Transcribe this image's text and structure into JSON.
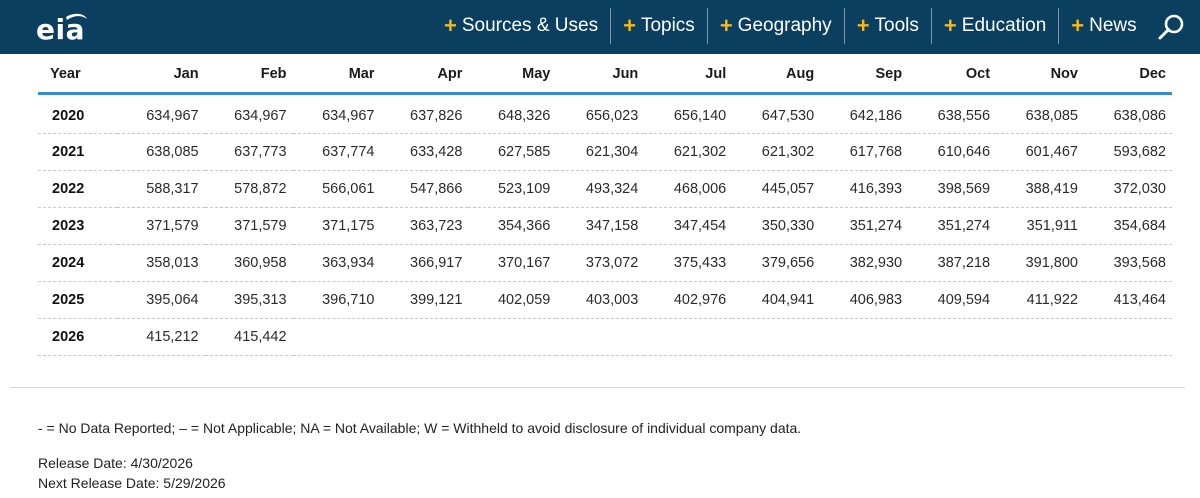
{
  "header": {
    "logo_text": "eia",
    "nav": [
      {
        "label": "Sources & Uses"
      },
      {
        "label": "Topics"
      },
      {
        "label": "Geography"
      },
      {
        "label": "Tools"
      },
      {
        "label": "Education"
      },
      {
        "label": "News"
      }
    ],
    "icons": {
      "search": "search-icon",
      "expand": "plus-icon"
    },
    "colors": {
      "bar_bg": "#0b3f5f",
      "plus": "#f2b81c",
      "table_rule": "#3a8bd1"
    }
  },
  "table": {
    "columns": [
      "Year",
      "Jan",
      "Feb",
      "Mar",
      "Apr",
      "May",
      "Jun",
      "Jul",
      "Aug",
      "Sep",
      "Oct",
      "Nov",
      "Dec"
    ],
    "rows": [
      [
        "2020",
        "634,967",
        "634,967",
        "634,967",
        "637,826",
        "648,326",
        "656,023",
        "656,140",
        "647,530",
        "642,186",
        "638,556",
        "638,085",
        "638,086"
      ],
      [
        "2021",
        "638,085",
        "637,773",
        "637,774",
        "633,428",
        "627,585",
        "621,304",
        "621,302",
        "621,302",
        "617,768",
        "610,646",
        "601,467",
        "593,682"
      ],
      [
        "2022",
        "588,317",
        "578,872",
        "566,061",
        "547,866",
        "523,109",
        "493,324",
        "468,006",
        "445,057",
        "416,393",
        "398,569",
        "388,419",
        "372,030"
      ],
      [
        "2023",
        "371,579",
        "371,579",
        "371,175",
        "363,723",
        "354,366",
        "347,158",
        "347,454",
        "350,330",
        "351,274",
        "351,274",
        "351,911",
        "354,684"
      ],
      [
        "2024",
        "358,013",
        "360,958",
        "363,934",
        "366,917",
        "370,167",
        "373,072",
        "375,433",
        "379,656",
        "382,930",
        "387,218",
        "391,800",
        "393,568"
      ],
      [
        "2025",
        "395,064",
        "395,313",
        "396,710",
        "399,121",
        "402,059",
        "403,003",
        "402,976",
        "404,941",
        "406,983",
        "409,594",
        "411,922",
        "413,464"
      ],
      [
        "2026",
        "415,212",
        "415,442",
        "",
        "",
        "",
        "",
        "",
        "",
        "",
        "",
        "",
        ""
      ]
    ]
  },
  "footer": {
    "legend": "- = No Data Reported;  – = Not Applicable;  NA = Not Available;  W = Withheld to avoid disclosure of individual company data.",
    "release_date": "Release Date: 4/30/2026",
    "next_release_date": "Next Release Date: 5/29/2026"
  }
}
